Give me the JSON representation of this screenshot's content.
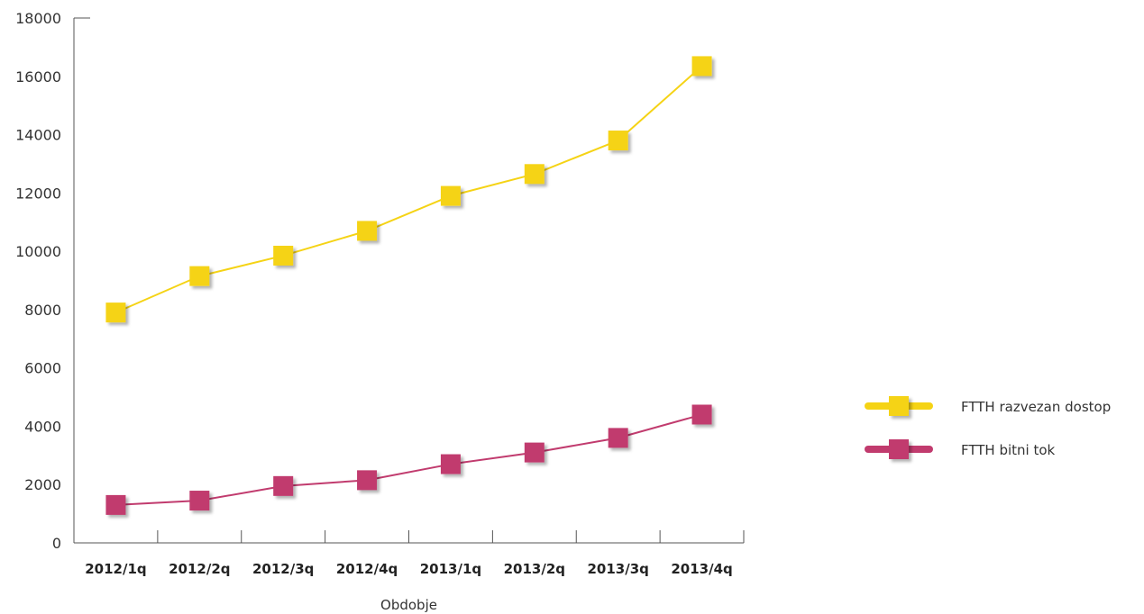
{
  "chart_data": {
    "type": "line",
    "title": "",
    "xlabel": "Obdobje",
    "ylabel": "",
    "categories": [
      "2012/1q",
      "2012/2q",
      "2012/3q",
      "2012/4q",
      "2013/1q",
      "2013/2q",
      "2013/3q",
      "2013/4q"
    ],
    "ylim": [
      0,
      18000
    ],
    "yticks": [
      "0",
      "2000",
      "4000",
      "6000",
      "8000",
      "10000",
      "12000",
      "14000",
      "16000",
      "18000"
    ],
    "grid": false,
    "legend_position": "right",
    "series": [
      {
        "name": "FTTH razvezan dostop",
        "color": "#F5D315",
        "values": [
          7900,
          9150,
          9850,
          10700,
          11900,
          12650,
          13800,
          16350
        ]
      },
      {
        "name": "FTTH bitni tok",
        "color": "#C13B6E",
        "values": [
          1300,
          1450,
          1950,
          2150,
          2700,
          3100,
          3600,
          4400
        ]
      }
    ]
  }
}
